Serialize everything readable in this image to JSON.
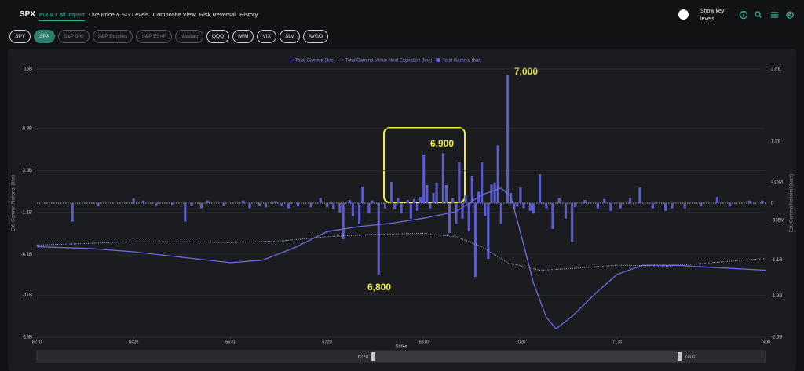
{
  "header": {
    "title": "SPX",
    "tabs": [
      "Put & Call Impact",
      "Live Price & SG Levels",
      "Composite View",
      "Risk Reversal",
      "History"
    ],
    "toggle_label": "Show key levels"
  },
  "tickers": [
    "SPY",
    "SPX",
    "S&P 500",
    "S&P Equities",
    "S&P ES=F",
    "Nasdaq",
    "QQQ",
    "IWM",
    "VIX",
    "SLV",
    "AVGO"
  ],
  "chart_data": {
    "type": "bar",
    "xlabel": "Strike",
    "ylabel": "Est. Gamma Notional (line)",
    "y2label": "Est. Gamma Notional (bars)",
    "xlim": [
      6270,
      7400
    ],
    "xticks": [
      6270,
      6420,
      6570,
      6720,
      6870,
      7020,
      7170,
      7400
    ],
    "ylim": [
      -16,
      16
    ],
    "yticks": [
      {
        "value": 16,
        "label": "16B"
      },
      {
        "value": 8.9,
        "label": "8.9B"
      },
      {
        "value": 3.9,
        "label": "3.9B"
      },
      {
        "value": -1.1,
        "label": "-1.1B"
      },
      {
        "value": -6.1,
        "label": "-6.1B"
      },
      {
        "value": -11,
        "label": "-11B"
      },
      {
        "value": -16,
        "label": "-16B"
      }
    ],
    "y2lim": [
      -2.6,
      2.6
    ],
    "y2ticks": [
      {
        "value": 2.6,
        "label": "2.6B"
      },
      {
        "value": 1.2,
        "label": "1.2B"
      },
      {
        "value": 0.415,
        "label": "415M"
      },
      0,
      {
        "value": -0.335,
        "label": "-335M"
      },
      {
        "value": -1.1,
        "label": "-1.1B"
      },
      {
        "value": -1.8,
        "label": "-1.8B"
      },
      {
        "value": -2.6,
        "label": "-2.6B"
      }
    ],
    "grid": true,
    "annotations": [
      "7,000",
      "6,900",
      "6,800"
    ],
    "series": [
      {
        "name": "Total Gamma (line)",
        "type": "line",
        "color": "#6c6ce4",
        "x": [
          6270,
          6350,
          6420,
          6500,
          6570,
          6620,
          6670,
          6720,
          6770,
          6820,
          6870,
          6920,
          6960,
          6990,
          7005,
          7020,
          7040,
          7060,
          7075,
          7100,
          7140,
          7170,
          7210,
          7260,
          7300,
          7400
        ],
        "values": [
          -5.2,
          -5.4,
          -5.8,
          -6.5,
          -7.1,
          -6.8,
          -5.3,
          -3.4,
          -2.8,
          -2.4,
          -1.8,
          -1.0,
          1.0,
          1.8,
          0.8,
          -3.5,
          -9.5,
          -13.6,
          -15.0,
          -13.5,
          -10.5,
          -8.5,
          -7.4,
          -7.4,
          -7.6,
          -8.0
        ]
      },
      {
        "name": "Total Gamma Minus Next Expiration (line)",
        "type": "dotted",
        "color": "#b9b9f5",
        "x": [
          6270,
          6350,
          6420,
          6500,
          6570,
          6650,
          6720,
          6800,
          6870,
          6920,
          6960,
          7000,
          7050,
          7100,
          7170,
          7250,
          7400
        ],
        "values": [
          -5.0,
          -4.8,
          -4.6,
          -4.6,
          -4.7,
          -4.5,
          -4.0,
          -3.7,
          -3.6,
          -4.0,
          -5.2,
          -7.1,
          -8.0,
          -7.8,
          -7.4,
          -7.5,
          -6.6
        ]
      },
      {
        "name": "Total Gamma (bar)",
        "type": "bar",
        "axis": "y2",
        "color": "#5c5cc8",
        "x": [
          6325,
          6365,
          6420,
          6435,
          6455,
          6480,
          6500,
          6510,
          6525,
          6535,
          6560,
          6590,
          6600,
          6615,
          6625,
          6640,
          6650,
          6660,
          6675,
          6695,
          6710,
          6720,
          6730,
          6740,
          6745,
          6755,
          6760,
          6770,
          6775,
          6785,
          6790,
          6800,
          6810,
          6820,
          6825,
          6830,
          6835,
          6845,
          6850,
          6855,
          6860,
          6865,
          6870,
          6875,
          6880,
          6885,
          6890,
          6900,
          6905,
          6910,
          6915,
          6920,
          6925,
          6930,
          6935,
          6940,
          6945,
          6950,
          6955,
          6960,
          6965,
          6970,
          6975,
          6980,
          6985,
          6990,
          7000,
          7005,
          7010,
          7015,
          7020,
          7025,
          7035,
          7040,
          7050,
          7060,
          7070,
          7080,
          7090,
          7100,
          7105,
          7120,
          7140,
          7150,
          7160,
          7175,
          7190,
          7205,
          7225,
          7245,
          7255,
          7275,
          7300,
          7325,
          7345,
          7375,
          7395
        ],
        "values": [
          -0.36,
          -0.06,
          0.09,
          0.05,
          -0.04,
          -0.03,
          -0.36,
          -0.06,
          -0.1,
          0.05,
          -0.05,
          0.05,
          -0.1,
          -0.05,
          -0.08,
          0.04,
          -0.06,
          -0.1,
          -0.06,
          -0.08,
          0.1,
          -0.08,
          -0.12,
          -0.18,
          -0.7,
          0.06,
          -0.25,
          -0.4,
          0.32,
          -0.2,
          0.05,
          -1.38,
          -0.1,
          0.41,
          -0.12,
          0.1,
          -0.2,
          0.06,
          -0.3,
          0.08,
          -0.15,
          0.12,
          0.94,
          0.35,
          -0.1,
          0.2,
          0.4,
          0.97,
          0.35,
          -0.58,
          0.1,
          -0.4,
          0.79,
          -0.3,
          0.15,
          -0.55,
          0.52,
          -1.43,
          0.22,
          0.79,
          -0.25,
          -1.08,
          0.36,
          0.4,
          1.12,
          -0.4,
          2.49,
          0.2,
          -0.12,
          -0.07,
          0.3,
          -0.1,
          -0.15,
          -0.2,
          0.56,
          -0.1,
          -0.5,
          0.1,
          -0.3,
          -0.75,
          -0.08,
          0.06,
          -0.1,
          0.08,
          -0.15,
          -0.1,
          0.1,
          0.3,
          -0.1,
          -0.15,
          -0.1,
          -0.1,
          -0.06,
          0.12,
          -0.06,
          0.05,
          0.05
        ]
      }
    ]
  }
}
